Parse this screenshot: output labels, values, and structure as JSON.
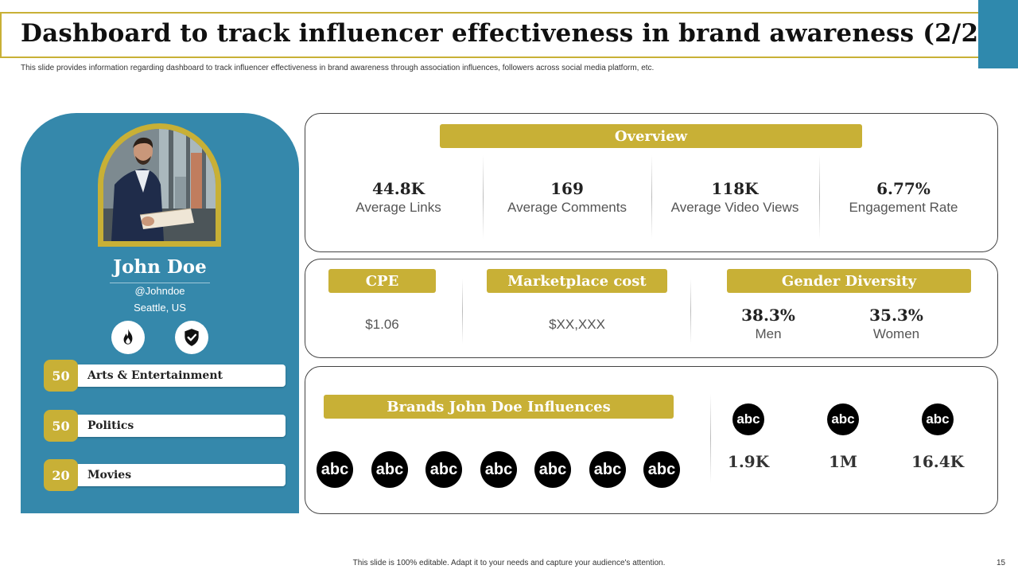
{
  "slide": {
    "title": "Dashboard to track influencer effectiveness in brand awareness (2/2)",
    "subtitle": "This slide provides information regarding dashboard to track influencer effectiveness in brand awareness through association influences, followers across social media platform, etc.",
    "footer_note": "This slide is 100% editable. Adapt it to your needs and capture your audience's attention.",
    "page_number": "15",
    "colors": {
      "accent_gold": "#c8b036",
      "panel_blue": "#3588ab",
      "corner_blue": "#2f89ad"
    }
  },
  "profile": {
    "name": "John Doe",
    "handle": "@Johndoe",
    "location": "Seattle, US",
    "icons": [
      "fire-icon",
      "shield-check-icon"
    ],
    "categories": [
      {
        "count": "50",
        "label": "Arts & Entertainment"
      },
      {
        "count": "50",
        "label": "Politics"
      },
      {
        "count": "20",
        "label": "Movies"
      }
    ]
  },
  "overview": {
    "heading": "Overview",
    "metrics": [
      {
        "value": "44.8K",
        "label": "Average Links"
      },
      {
        "value": "169",
        "label": "Average Comments"
      },
      {
        "value": "118K",
        "label": "Average Video Views"
      },
      {
        "value": "6.77%",
        "label": "Engagement Rate"
      }
    ]
  },
  "costs": {
    "cpe": {
      "heading": "CPE",
      "value": "$1.06"
    },
    "marketplace": {
      "heading": "Marketplace cost",
      "value": "$XX,XXX"
    },
    "gender": {
      "heading": "Gender Diversity",
      "men": {
        "value": "38.3%",
        "label": "Men"
      },
      "women": {
        "value": "35.3%",
        "label": "Women"
      }
    }
  },
  "brands": {
    "heading": "Brands John Doe Influences",
    "logo_text": "abc",
    "logo_count_shown": 7,
    "stats": [
      {
        "logo": "abc",
        "value": "1.9K"
      },
      {
        "logo": "abc",
        "value": "1M"
      },
      {
        "logo": "abc",
        "value": "16.4K"
      }
    ]
  }
}
